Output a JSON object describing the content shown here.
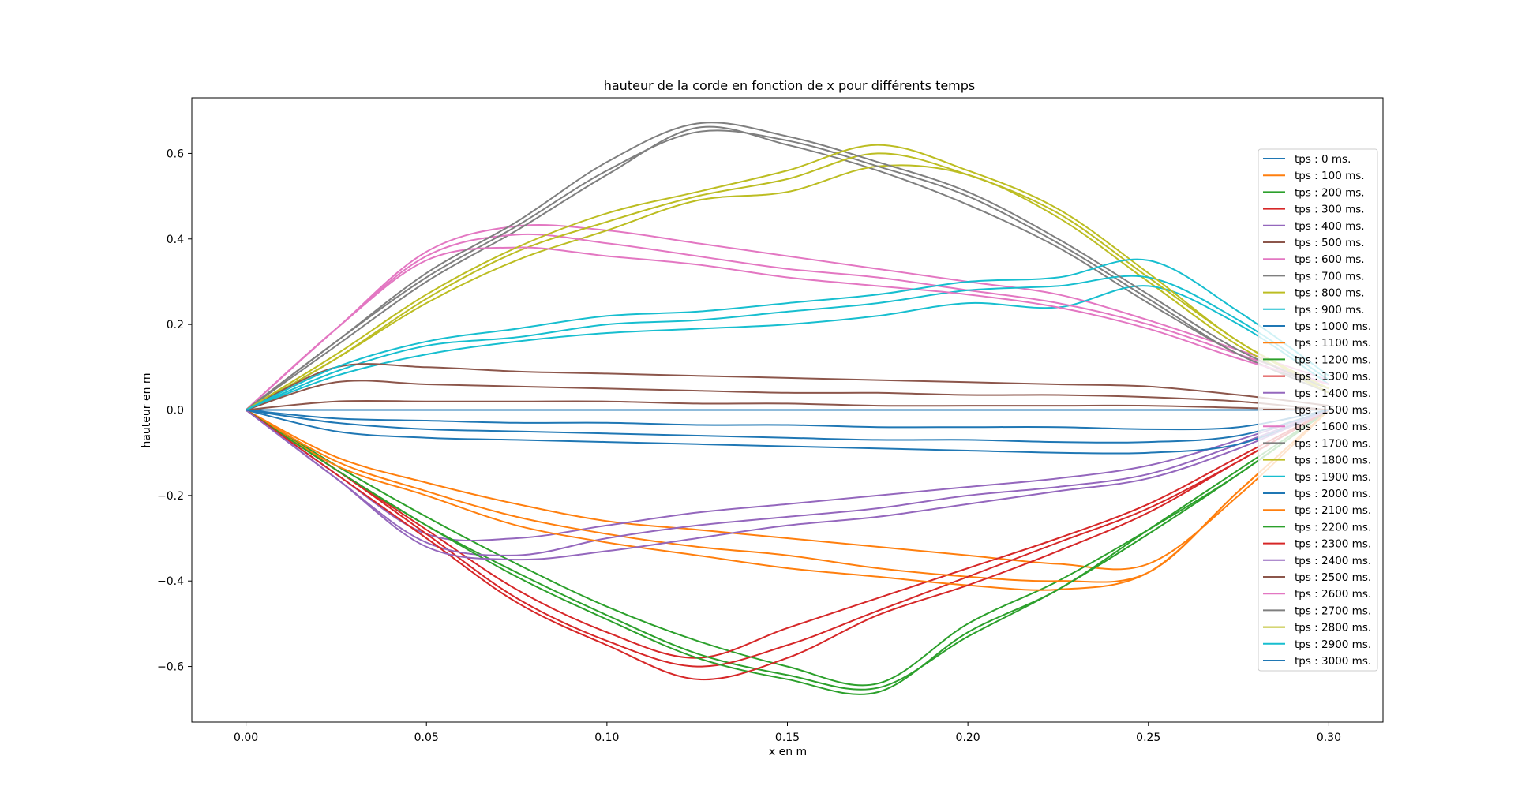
{
  "chart_data": {
    "type": "line",
    "title": "hauteur de la corde en fonction de x pour différents temps",
    "xlabel": "x en m",
    "ylabel": "hauteur en m",
    "xlim": [
      -0.015,
      0.315
    ],
    "ylim": [
      -0.73,
      0.73
    ],
    "xticks": [
      0.0,
      0.05,
      0.1,
      0.15,
      0.2,
      0.25,
      0.3
    ],
    "xtick_labels": [
      "0.00",
      "0.05",
      "0.10",
      "0.15",
      "0.20",
      "0.25",
      "0.30"
    ],
    "yticks": [
      -0.6,
      -0.4,
      -0.2,
      0.0,
      0.2,
      0.4,
      0.6
    ],
    "ytick_labels": [
      "−0.6",
      "−0.4",
      "−0.2",
      "0.0",
      "0.2",
      "0.4",
      "0.6"
    ],
    "grid": false,
    "legend": "right",
    "x": [
      0,
      0.025,
      0.05,
      0.075,
      0.1,
      0.125,
      0.15,
      0.175,
      0.2,
      0.225,
      0.25,
      0.275,
      0.3
    ],
    "series": [
      {
        "name": "tps : 0 ms.",
        "color": "#1f77b4",
        "values": [
          0,
          0,
          0,
          0,
          0,
          0,
          0,
          0,
          0,
          0,
          0,
          0,
          0
        ]
      },
      {
        "name": "tps : 100 ms.",
        "color": "#ff7f0e",
        "values": [
          0,
          -0.11,
          -0.17,
          -0.22,
          -0.26,
          -0.28,
          -0.3,
          -0.32,
          -0.34,
          -0.36,
          -0.36,
          -0.2,
          0
        ]
      },
      {
        "name": "tps : 200 ms.",
        "color": "#2ca02c",
        "values": [
          0,
          -0.13,
          -0.25,
          -0.36,
          -0.46,
          -0.54,
          -0.6,
          -0.64,
          -0.5,
          -0.4,
          -0.28,
          -0.15,
          0
        ]
      },
      {
        "name": "tps : 300 ms.",
        "color": "#d62728",
        "values": [
          0,
          -0.14,
          -0.28,
          -0.42,
          -0.52,
          -0.58,
          -0.51,
          -0.44,
          -0.37,
          -0.3,
          -0.22,
          -0.11,
          0
        ]
      },
      {
        "name": "tps : 400 ms.",
        "color": "#9467bd",
        "values": [
          0,
          -0.15,
          -0.29,
          -0.3,
          -0.27,
          -0.24,
          -0.22,
          -0.2,
          -0.18,
          -0.16,
          -0.13,
          -0.07,
          0
        ]
      },
      {
        "name": "tps : 500 ms.",
        "color": "#8c564b",
        "values": [
          0,
          0.02,
          0.02,
          0.02,
          0.02,
          0.015,
          0.015,
          0.01,
          0.01,
          0.01,
          0.01,
          0.005,
          0
        ]
      },
      {
        "name": "tps : 600 ms.",
        "color": "#e377c2",
        "values": [
          0,
          0.19,
          0.37,
          0.43,
          0.42,
          0.39,
          0.36,
          0.33,
          0.3,
          0.27,
          0.21,
          0.14,
          0.07
        ]
      },
      {
        "name": "tps : 700 ms.",
        "color": "#7f7f7f",
        "values": [
          0,
          0.15,
          0.3,
          0.42,
          0.55,
          0.66,
          0.62,
          0.56,
          0.48,
          0.38,
          0.25,
          0.13,
          0.04
        ]
      },
      {
        "name": "tps : 800 ms.",
        "color": "#bcbd22",
        "values": [
          0,
          0.12,
          0.25,
          0.35,
          0.42,
          0.49,
          0.51,
          0.57,
          0.55,
          0.45,
          0.3,
          0.15,
          0.04
        ]
      },
      {
        "name": "tps : 900 ms.",
        "color": "#17becf",
        "values": [
          0,
          0.08,
          0.13,
          0.16,
          0.18,
          0.19,
          0.2,
          0.22,
          0.25,
          0.24,
          0.29,
          0.2,
          0.06
        ]
      },
      {
        "name": "tps : 1000 ms.",
        "color": "#1f77b4",
        "values": [
          0,
          -0.03,
          -0.045,
          -0.05,
          -0.055,
          -0.06,
          -0.065,
          -0.07,
          -0.07,
          -0.075,
          -0.075,
          -0.06,
          0
        ]
      },
      {
        "name": "tps : 1100 ms.",
        "color": "#ff7f0e",
        "values": [
          0,
          -0.12,
          -0.19,
          -0.25,
          -0.29,
          -0.32,
          -0.34,
          -0.37,
          -0.39,
          -0.4,
          -0.38,
          -0.19,
          0
        ]
      },
      {
        "name": "tps : 1200 ms.",
        "color": "#2ca02c",
        "values": [
          0,
          -0.14,
          -0.27,
          -0.38,
          -0.48,
          -0.57,
          -0.62,
          -0.65,
          -0.53,
          -0.42,
          -0.29,
          -0.15,
          0
        ]
      },
      {
        "name": "tps : 1300 ms.",
        "color": "#d62728",
        "values": [
          0,
          -0.14,
          -0.29,
          -0.44,
          -0.54,
          -0.6,
          -0.55,
          -0.47,
          -0.39,
          -0.31,
          -0.23,
          -0.12,
          0
        ]
      },
      {
        "name": "tps : 1400 ms.",
        "color": "#9467bd",
        "values": [
          0,
          -0.16,
          -0.31,
          -0.34,
          -0.3,
          -0.27,
          -0.25,
          -0.23,
          -0.2,
          -0.18,
          -0.15,
          -0.08,
          0
        ]
      },
      {
        "name": "tps : 1500 ms.",
        "color": "#8c564b",
        "values": [
          0,
          0.065,
          0.06,
          0.055,
          0.05,
          0.045,
          0.04,
          0.04,
          0.035,
          0.035,
          0.03,
          0.02,
          0
        ]
      },
      {
        "name": "tps : 1600 ms.",
        "color": "#e377c2",
        "values": [
          0,
          0.19,
          0.36,
          0.41,
          0.39,
          0.36,
          0.33,
          0.31,
          0.28,
          0.25,
          0.2,
          0.13,
          0.06
        ]
      },
      {
        "name": "tps : 1700 ms.",
        "color": "#7f7f7f",
        "values": [
          0,
          0.16,
          0.31,
          0.43,
          0.56,
          0.65,
          0.63,
          0.57,
          0.5,
          0.39,
          0.26,
          0.13,
          0.05
        ]
      },
      {
        "name": "tps : 1800 ms.",
        "color": "#bcbd22",
        "values": [
          0,
          0.12,
          0.26,
          0.37,
          0.44,
          0.5,
          0.54,
          0.6,
          0.55,
          0.46,
          0.31,
          0.16,
          0.04
        ]
      },
      {
        "name": "tps : 1900 ms.",
        "color": "#17becf",
        "values": [
          0,
          0.09,
          0.15,
          0.17,
          0.2,
          0.21,
          0.23,
          0.25,
          0.28,
          0.29,
          0.31,
          0.21,
          0.07
        ]
      },
      {
        "name": "tps : 2000 ms.",
        "color": "#1f77b4",
        "values": [
          0,
          -0.05,
          -0.065,
          -0.07,
          -0.075,
          -0.08,
          -0.085,
          -0.09,
          -0.095,
          -0.1,
          -0.1,
          -0.08,
          0
        ]
      },
      {
        "name": "tps : 2100 ms.",
        "color": "#ff7f0e",
        "values": [
          0,
          -0.13,
          -0.2,
          -0.27,
          -0.31,
          -0.34,
          -0.37,
          -0.39,
          -0.41,
          -0.42,
          -0.38,
          -0.19,
          0
        ]
      },
      {
        "name": "tps : 2200 ms.",
        "color": "#2ca02c",
        "values": [
          0,
          -0.14,
          -0.27,
          -0.39,
          -0.49,
          -0.58,
          -0.63,
          -0.66,
          -0.52,
          -0.42,
          -0.28,
          -0.14,
          0
        ]
      },
      {
        "name": "tps : 2300 ms.",
        "color": "#d62728",
        "values": [
          0,
          -0.15,
          -0.3,
          -0.45,
          -0.55,
          -0.63,
          -0.58,
          -0.48,
          -0.41,
          -0.33,
          -0.24,
          -0.12,
          0
        ]
      },
      {
        "name": "tps : 2400 ms.",
        "color": "#9467bd",
        "values": [
          0,
          -0.16,
          -0.32,
          -0.35,
          -0.33,
          -0.3,
          -0.27,
          -0.25,
          -0.22,
          -0.19,
          -0.16,
          -0.09,
          0
        ]
      },
      {
        "name": "tps : 2500 ms.",
        "color": "#8c564b",
        "values": [
          0,
          0.1,
          0.1,
          0.09,
          0.085,
          0.08,
          0.075,
          0.07,
          0.065,
          0.06,
          0.055,
          0.035,
          0.01
        ]
      },
      {
        "name": "tps : 2600 ms.",
        "color": "#e377c2",
        "values": [
          0,
          0.19,
          0.35,
          0.38,
          0.36,
          0.34,
          0.31,
          0.29,
          0.27,
          0.24,
          0.19,
          0.12,
          0.06
        ]
      },
      {
        "name": "tps : 2700 ms.",
        "color": "#7f7f7f",
        "values": [
          0,
          0.16,
          0.32,
          0.44,
          0.58,
          0.67,
          0.64,
          0.58,
          0.51,
          0.4,
          0.27,
          0.14,
          0.05
        ]
      },
      {
        "name": "tps : 2800 ms.",
        "color": "#bcbd22",
        "values": [
          0,
          0.13,
          0.27,
          0.38,
          0.46,
          0.51,
          0.56,
          0.62,
          0.56,
          0.47,
          0.32,
          0.16,
          0.05
        ]
      },
      {
        "name": "tps : 2900 ms.",
        "color": "#17becf",
        "values": [
          0,
          0.1,
          0.16,
          0.19,
          0.22,
          0.23,
          0.25,
          0.27,
          0.3,
          0.31,
          0.35,
          0.23,
          0.08
        ]
      },
      {
        "name": "tps : 3000 ms.",
        "color": "#1f77b4",
        "values": [
          0,
          -0.02,
          -0.025,
          -0.03,
          -0.03,
          -0.035,
          -0.035,
          -0.04,
          -0.04,
          -0.04,
          -0.045,
          -0.04,
          0
        ]
      }
    ]
  }
}
